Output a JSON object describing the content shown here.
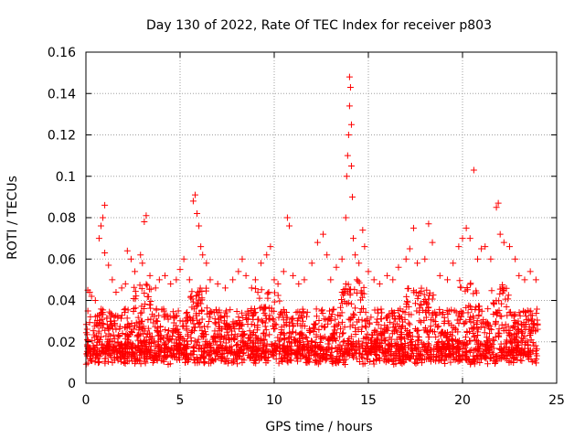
{
  "chart_data": {
    "type": "scatter",
    "title": "Day 130 of 2022, Rate Of TEC Index for receiver p803",
    "xlabel": "GPS time / hours",
    "ylabel": "ROTI / TECUs",
    "xlim": [
      0,
      25
    ],
    "ylim": [
      0,
      0.16
    ],
    "xticks": [
      0,
      5,
      10,
      15,
      20,
      25
    ],
    "yticks": [
      0,
      0.02,
      0.04,
      0.06,
      0.08,
      0.1,
      0.12,
      0.14,
      0.16
    ],
    "xtick_labels": [
      "0",
      "5",
      "10",
      "15",
      "20",
      "25"
    ],
    "ytick_labels": [
      "0",
      "0.02",
      "0.04",
      "0.06",
      "0.08",
      "0.1",
      "0.12",
      "0.14",
      "0.16"
    ],
    "grid": true,
    "marker": "+",
    "color": "#ff0000",
    "series": [
      {
        "name": "p803",
        "points": [
          [
            0.1,
            0.045
          ],
          [
            0.2,
            0.044
          ],
          [
            0.3,
            0.042
          ],
          [
            0.5,
            0.04
          ],
          [
            0.7,
            0.07
          ],
          [
            0.8,
            0.076
          ],
          [
            0.9,
            0.08
          ],
          [
            1.0,
            0.086
          ],
          [
            1.0,
            0.063
          ],
          [
            1.2,
            0.057
          ],
          [
            1.4,
            0.05
          ],
          [
            1.6,
            0.044
          ],
          [
            1.9,
            0.046
          ],
          [
            2.1,
            0.048
          ],
          [
            2.2,
            0.064
          ],
          [
            2.4,
            0.06
          ],
          [
            2.6,
            0.054
          ],
          [
            2.9,
            0.062
          ],
          [
            3.0,
            0.058
          ],
          [
            3.1,
            0.078
          ],
          [
            3.2,
            0.081
          ],
          [
            3.4,
            0.052
          ],
          [
            3.7,
            0.046
          ],
          [
            3.9,
            0.05
          ],
          [
            4.2,
            0.052
          ],
          [
            4.5,
            0.048
          ],
          [
            4.8,
            0.05
          ],
          [
            5.0,
            0.055
          ],
          [
            5.2,
            0.06
          ],
          [
            5.5,
            0.05
          ],
          [
            5.7,
            0.088
          ],
          [
            5.8,
            0.091
          ],
          [
            5.9,
            0.082
          ],
          [
            6.0,
            0.076
          ],
          [
            6.1,
            0.066
          ],
          [
            6.2,
            0.062
          ],
          [
            6.4,
            0.058
          ],
          [
            6.6,
            0.05
          ],
          [
            7.0,
            0.048
          ],
          [
            7.4,
            0.046
          ],
          [
            7.8,
            0.05
          ],
          [
            8.1,
            0.054
          ],
          [
            8.3,
            0.06
          ],
          [
            8.5,
            0.052
          ],
          [
            8.8,
            0.046
          ],
          [
            9.0,
            0.05
          ],
          [
            9.3,
            0.058
          ],
          [
            9.6,
            0.062
          ],
          [
            9.8,
            0.066
          ],
          [
            10.0,
            0.05
          ],
          [
            10.2,
            0.048
          ],
          [
            10.5,
            0.054
          ],
          [
            10.7,
            0.08
          ],
          [
            10.8,
            0.076
          ],
          [
            11.0,
            0.052
          ],
          [
            11.3,
            0.048
          ],
          [
            11.6,
            0.05
          ],
          [
            12.0,
            0.058
          ],
          [
            12.3,
            0.068
          ],
          [
            12.6,
            0.072
          ],
          [
            12.8,
            0.062
          ],
          [
            13.0,
            0.05
          ],
          [
            13.3,
            0.056
          ],
          [
            13.6,
            0.06
          ],
          [
            13.8,
            0.08
          ],
          [
            13.85,
            0.1
          ],
          [
            13.9,
            0.11
          ],
          [
            13.95,
            0.12
          ],
          [
            14.0,
            0.134
          ],
          [
            14.0,
            0.148
          ],
          [
            14.05,
            0.143
          ],
          [
            14.1,
            0.125
          ],
          [
            14.1,
            0.105
          ],
          [
            14.15,
            0.09
          ],
          [
            14.2,
            0.07
          ],
          [
            14.3,
            0.062
          ],
          [
            14.5,
            0.058
          ],
          [
            14.7,
            0.074
          ],
          [
            14.8,
            0.066
          ],
          [
            15.0,
            0.054
          ],
          [
            15.3,
            0.05
          ],
          [
            15.6,
            0.048
          ],
          [
            16.0,
            0.052
          ],
          [
            16.3,
            0.05
          ],
          [
            16.6,
            0.056
          ],
          [
            17.0,
            0.06
          ],
          [
            17.2,
            0.065
          ],
          [
            17.4,
            0.075
          ],
          [
            17.6,
            0.058
          ],
          [
            18.0,
            0.06
          ],
          [
            18.2,
            0.077
          ],
          [
            18.4,
            0.068
          ],
          [
            18.8,
            0.052
          ],
          [
            19.2,
            0.05
          ],
          [
            19.5,
            0.058
          ],
          [
            19.8,
            0.066
          ],
          [
            20.0,
            0.07
          ],
          [
            20.2,
            0.075
          ],
          [
            20.4,
            0.07
          ],
          [
            20.6,
            0.103
          ],
          [
            20.8,
            0.06
          ],
          [
            21.0,
            0.065
          ],
          [
            21.2,
            0.066
          ],
          [
            21.5,
            0.06
          ],
          [
            21.8,
            0.085
          ],
          [
            21.9,
            0.087
          ],
          [
            22.0,
            0.072
          ],
          [
            22.2,
            0.068
          ],
          [
            22.5,
            0.066
          ],
          [
            22.8,
            0.06
          ],
          [
            23.0,
            0.052
          ],
          [
            23.3,
            0.05
          ],
          [
            23.6,
            0.054
          ],
          [
            23.9,
            0.05
          ]
        ]
      }
    ]
  }
}
